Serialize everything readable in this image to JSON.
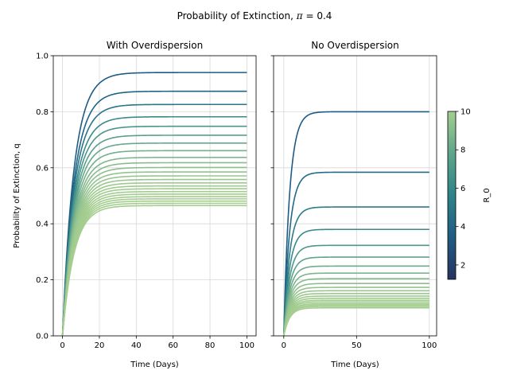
{
  "figure": {
    "suptitle_prefix": "Probability of Extinction, ",
    "suptitle_symbol": "π",
    "suptitle_suffix": " = 0.4"
  },
  "colorbar": {
    "label": "R_0",
    "range": [
      1.25,
      10
    ],
    "ticks": [
      2,
      4,
      6,
      8,
      10
    ],
    "colors": [
      "#26335f",
      "#1f5b84",
      "#2e8388",
      "#5ea58b",
      "#a4ce8f"
    ]
  },
  "chart_data": [
    {
      "type": "line",
      "title": "With Overdispersion",
      "xlabel": "Time (Days)",
      "ylabel": "Probability of Extinction, q",
      "xlim": [
        -5,
        105
      ],
      "ylim": [
        0,
        1
      ],
      "xticks": [
        0,
        20,
        40,
        60,
        80,
        100
      ],
      "yticks": [
        0,
        0.2,
        0.4,
        0.6,
        0.8,
        1.0
      ],
      "grid": true,
      "x": [
        0,
        100
      ],
      "series": [
        {
          "plateau": 0.94,
          "color": "#1f5b84"
        },
        {
          "plateau": 0.873,
          "color": "#1f6586"
        },
        {
          "plateau": 0.826,
          "color": "#2a7588"
        },
        {
          "plateau": 0.782,
          "color": "#3a8a89"
        },
        {
          "plateau": 0.748,
          "color": "#4a968a"
        },
        {
          "plateau": 0.716,
          "color": "#58a08b"
        },
        {
          "plateau": 0.688,
          "color": "#67a98c"
        },
        {
          "plateau": 0.661,
          "color": "#74b08d"
        },
        {
          "plateau": 0.637,
          "color": "#80b68d"
        },
        {
          "plateau": 0.618,
          "color": "#88bb8e"
        },
        {
          "plateau": 0.601,
          "color": "#8fbf8e"
        },
        {
          "plateau": 0.585,
          "color": "#94c38f"
        },
        {
          "plateau": 0.571,
          "color": "#98c58f"
        },
        {
          "plateau": 0.558,
          "color": "#9bc78f"
        },
        {
          "plateau": 0.546,
          "color": "#9ec98f"
        },
        {
          "plateau": 0.535,
          "color": "#a0ca8f"
        },
        {
          "plateau": 0.525,
          "color": "#a1cb8f"
        },
        {
          "plateau": 0.515,
          "color": "#a2cc8f"
        },
        {
          "plateau": 0.506,
          "color": "#a3cc8f"
        },
        {
          "plateau": 0.497,
          "color": "#a3cd8f"
        },
        {
          "plateau": 0.489,
          "color": "#a4cd8f"
        },
        {
          "plateau": 0.481,
          "color": "#a4ce8f"
        },
        {
          "plateau": 0.473,
          "color": "#a4ce8f"
        },
        {
          "plateau": 0.465,
          "color": "#a4ce8f"
        }
      ]
    },
    {
      "type": "line",
      "title": "No Overdispersion",
      "xlabel": "Time (Days)",
      "ylabel": "",
      "xlim": [
        -7,
        105
      ],
      "ylim": [
        0,
        1
      ],
      "xticks": [
        0,
        50,
        100
      ],
      "yticks": [
        0,
        0.2,
        0.4,
        0.6,
        0.8,
        1.0
      ],
      "grid": true,
      "x": [
        0,
        100
      ],
      "series": [
        {
          "plateau": 0.8,
          "color": "#1f5b84"
        },
        {
          "plateau": 0.584,
          "color": "#226a87"
        },
        {
          "plateau": 0.46,
          "color": "#2e7a88"
        },
        {
          "plateau": 0.38,
          "color": "#3b8a89"
        },
        {
          "plateau": 0.323,
          "color": "#4c978a"
        },
        {
          "plateau": 0.281,
          "color": "#5ea28b"
        },
        {
          "plateau": 0.249,
          "color": "#6eab8c"
        },
        {
          "plateau": 0.224,
          "color": "#7cb48d"
        },
        {
          "plateau": 0.204,
          "color": "#87ba8e"
        },
        {
          "plateau": 0.187,
          "color": "#8fbf8e"
        },
        {
          "plateau": 0.173,
          "color": "#95c28f"
        },
        {
          "plateau": 0.161,
          "color": "#99c58f"
        },
        {
          "plateau": 0.151,
          "color": "#9cc78f"
        },
        {
          "plateau": 0.142,
          "color": "#9fc98f"
        },
        {
          "plateau": 0.134,
          "color": "#a0ca8f"
        },
        {
          "plateau": 0.127,
          "color": "#a2cb8f"
        },
        {
          "plateau": 0.121,
          "color": "#a3cc8f"
        },
        {
          "plateau": 0.115,
          "color": "#a3cd8f"
        },
        {
          "plateau": 0.11,
          "color": "#a4cd8f"
        },
        {
          "plateau": 0.105,
          "color": "#a4ce8f"
        },
        {
          "plateau": 0.1,
          "color": "#a4ce8f"
        }
      ]
    }
  ]
}
